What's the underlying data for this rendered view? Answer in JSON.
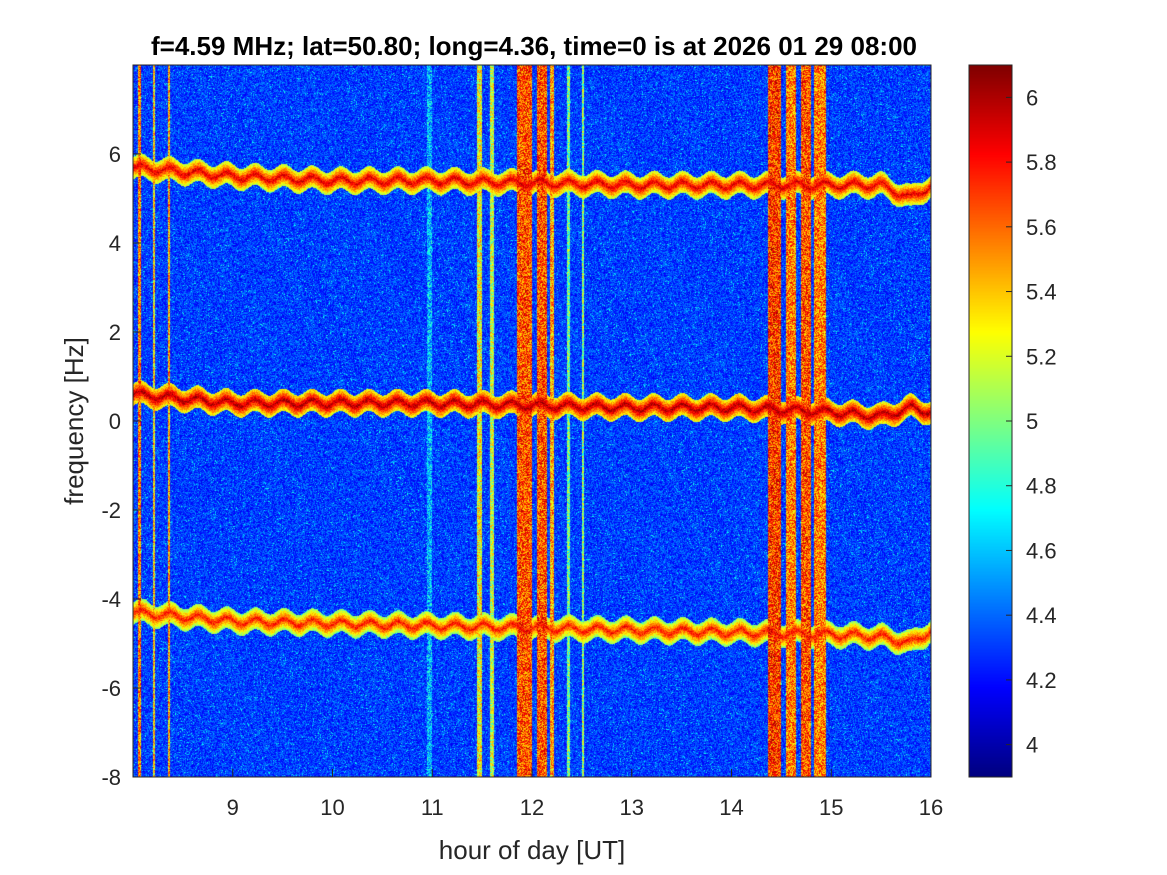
{
  "chart_data": {
    "type": "heatmap",
    "title": "f=4.59 MHz;  lat=50.80; long=4.36, time=0 is at 2026 01 29 08:00",
    "xlabel": "hour of day [UT]",
    "ylabel": "frequency [Hz]",
    "xlim": [
      8.0,
      16.0
    ],
    "ylim": [
      -8.0,
      8.0
    ],
    "x_ticks": [
      9,
      10,
      11,
      12,
      13,
      14,
      15,
      16
    ],
    "y_ticks": [
      -8,
      -6,
      -4,
      -2,
      0,
      2,
      4,
      6
    ],
    "colorbar": {
      "colormap": "jet",
      "clim": [
        3.9,
        6.1
      ],
      "ticks": [
        4,
        4.2,
        4.4,
        4.6,
        4.8,
        5,
        5.2,
        5.4,
        5.6,
        5.8,
        6
      ]
    },
    "background_level": 4.3,
    "traces": [
      {
        "name": "upper",
        "x": [
          8.0,
          8.5,
          9.0,
          10.0,
          11.0,
          12.0,
          13.0,
          14.0,
          15.0,
          15.5,
          15.8,
          16.0
        ],
        "y": [
          5.7,
          5.6,
          5.5,
          5.4,
          5.4,
          5.35,
          5.3,
          5.3,
          5.3,
          5.3,
          5.0,
          5.3
        ],
        "level": 5.9
      },
      {
        "name": "center",
        "x": [
          8.0,
          8.5,
          9.0,
          10.0,
          11.0,
          12.0,
          13.0,
          14.0,
          15.0,
          15.5,
          15.8,
          16.0
        ],
        "y": [
          0.6,
          0.5,
          0.4,
          0.4,
          0.4,
          0.35,
          0.3,
          0.3,
          0.2,
          0.1,
          0.3,
          0.2
        ],
        "level": 6.0
      },
      {
        "name": "lower",
        "x": [
          8.0,
          8.5,
          9.0,
          10.0,
          11.0,
          12.0,
          13.0,
          14.0,
          15.0,
          15.5,
          15.8,
          16.0
        ],
        "y": [
          -4.3,
          -4.4,
          -4.5,
          -4.55,
          -4.6,
          -4.65,
          -4.7,
          -4.75,
          -4.8,
          -4.85,
          -5.0,
          -4.7
        ],
        "level": 5.8
      }
    ],
    "broadband_bands": [
      {
        "x_start": 8.05,
        "x_end": 8.08,
        "level": 5.9
      },
      {
        "x_start": 8.2,
        "x_end": 8.22,
        "level": 5.7
      },
      {
        "x_start": 8.35,
        "x_end": 8.37,
        "level": 5.8
      },
      {
        "x_start": 10.95,
        "x_end": 11.0,
        "level": 4.9
      },
      {
        "x_start": 11.45,
        "x_end": 11.5,
        "level": 5.6
      },
      {
        "x_start": 11.58,
        "x_end": 11.62,
        "level": 5.5
      },
      {
        "x_start": 11.85,
        "x_end": 12.0,
        "level": 6.0
      },
      {
        "x_start": 12.05,
        "x_end": 12.15,
        "level": 6.0
      },
      {
        "x_start": 12.18,
        "x_end": 12.22,
        "level": 5.8
      },
      {
        "x_start": 12.35,
        "x_end": 12.38,
        "level": 5.3
      },
      {
        "x_start": 12.5,
        "x_end": 12.52,
        "level": 5.4
      },
      {
        "x_start": 14.37,
        "x_end": 14.5,
        "level": 6.05
      },
      {
        "x_start": 14.55,
        "x_end": 14.65,
        "level": 5.9
      },
      {
        "x_start": 14.7,
        "x_end": 14.8,
        "level": 6.0
      },
      {
        "x_start": 14.83,
        "x_end": 14.95,
        "level": 5.9
      }
    ],
    "grid": false,
    "legend": "none"
  }
}
